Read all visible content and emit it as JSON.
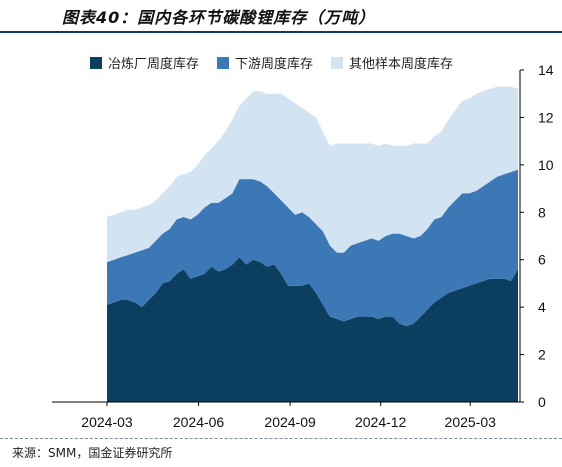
{
  "title": "图表40：国内各环节碳酸锂库存（万吨）",
  "source": "来源：SMM，国金证券研究所",
  "chart_data": {
    "type": "area",
    "stacked": true,
    "x": [
      "2024-03-01",
      "2024-03-08",
      "2024-03-15",
      "2024-03-22",
      "2024-03-29",
      "2024-04-05",
      "2024-04-12",
      "2024-04-19",
      "2024-04-26",
      "2024-05-03",
      "2024-05-10",
      "2024-05-17",
      "2024-05-24",
      "2024-05-31",
      "2024-06-07",
      "2024-06-14",
      "2024-06-21",
      "2024-06-28",
      "2024-07-05",
      "2024-07-12",
      "2024-07-19",
      "2024-07-26",
      "2024-08-02",
      "2024-08-09",
      "2024-08-16",
      "2024-08-23",
      "2024-08-30",
      "2024-09-06",
      "2024-09-13",
      "2024-09-20",
      "2024-09-27",
      "2024-10-04",
      "2024-10-11",
      "2024-10-18",
      "2024-10-25",
      "2024-11-01",
      "2024-11-08",
      "2024-11-15",
      "2024-11-22",
      "2024-11-29",
      "2024-12-06",
      "2024-12-13",
      "2024-12-20",
      "2024-12-27",
      "2025-01-03",
      "2025-01-10",
      "2025-01-17",
      "2025-01-24",
      "2025-01-31",
      "2025-02-07",
      "2025-02-14",
      "2025-02-21",
      "2025-02-28",
      "2025-03-07",
      "2025-03-14",
      "2025-03-21",
      "2025-03-28",
      "2025-04-04",
      "2025-04-11",
      "2025-04-18"
    ],
    "series": [
      {
        "name": "冶炼厂周度库存",
        "color": "#0b3e5f",
        "values": [
          4.1,
          4.2,
          4.3,
          4.3,
          4.2,
          4.0,
          4.3,
          4.6,
          5.0,
          5.1,
          5.4,
          5.6,
          5.2,
          5.3,
          5.4,
          5.7,
          5.5,
          5.6,
          5.8,
          6.1,
          5.8,
          6.0,
          5.9,
          5.7,
          5.8,
          5.4,
          4.9,
          4.9,
          4.9,
          5.0,
          4.6,
          4.1,
          3.6,
          3.5,
          3.4,
          3.5,
          3.6,
          3.6,
          3.6,
          3.5,
          3.6,
          3.6,
          3.3,
          3.2,
          3.3,
          3.6,
          3.9,
          4.2,
          4.4,
          4.6,
          4.7,
          4.8,
          4.9,
          5.0,
          5.1,
          5.2,
          5.2,
          5.2,
          5.1,
          5.6
        ]
      },
      {
        "name": "下游周度库存",
        "color": "#3d78b6",
        "values": [
          1.8,
          1.8,
          1.8,
          1.9,
          2.1,
          2.4,
          2.2,
          2.2,
          2.1,
          2.2,
          2.3,
          2.2,
          2.5,
          2.6,
          2.8,
          2.7,
          2.9,
          3.0,
          3.0,
          3.3,
          3.6,
          3.4,
          3.4,
          3.4,
          3.0,
          3.1,
          3.3,
          3.0,
          3.1,
          2.8,
          2.9,
          3.1,
          3.0,
          2.8,
          2.9,
          3.1,
          3.1,
          3.2,
          3.3,
          3.3,
          3.4,
          3.5,
          3.8,
          3.8,
          3.6,
          3.4,
          3.4,
          3.5,
          3.4,
          3.6,
          3.8,
          4.0,
          3.9,
          3.9,
          4.0,
          4.1,
          4.3,
          4.4,
          4.6,
          4.2
        ]
      },
      {
        "name": "其他样本周度库存",
        "color": "#d2e3f2",
        "values": [
          1.9,
          1.9,
          1.9,
          1.9,
          1.8,
          1.8,
          1.8,
          1.7,
          1.7,
          1.8,
          1.8,
          1.8,
          2.0,
          2.1,
          2.2,
          2.3,
          2.6,
          2.8,
          3.1,
          3.1,
          3.4,
          3.7,
          3.8,
          3.9,
          4.2,
          4.5,
          4.6,
          4.7,
          4.4,
          4.4,
          4.5,
          4.2,
          4.2,
          4.6,
          4.6,
          4.3,
          4.2,
          4.1,
          4.0,
          4.0,
          3.9,
          3.7,
          3.7,
          3.8,
          4.0,
          3.9,
          3.6,
          3.5,
          3.6,
          3.7,
          3.8,
          3.9,
          4.0,
          4.1,
          4.0,
          3.9,
          3.8,
          3.7,
          3.6,
          3.4
        ]
      }
    ],
    "ylim": [
      0,
      14
    ],
    "yticks": [
      "0",
      "2",
      "4",
      "6",
      "8",
      "10",
      "12",
      "14"
    ],
    "xticks": [
      {
        "label": "2024-03",
        "at": "2024-03-01"
      },
      {
        "label": "2024-06",
        "at": "2024-06-01"
      },
      {
        "label": "2024-09",
        "at": "2024-09-01"
      },
      {
        "label": "2024-12",
        "at": "2024-12-01"
      },
      {
        "label": "2025-03",
        "at": "2025-03-01"
      }
    ],
    "yaxis_side": "right",
    "legend_position": "top",
    "grid": false
  }
}
